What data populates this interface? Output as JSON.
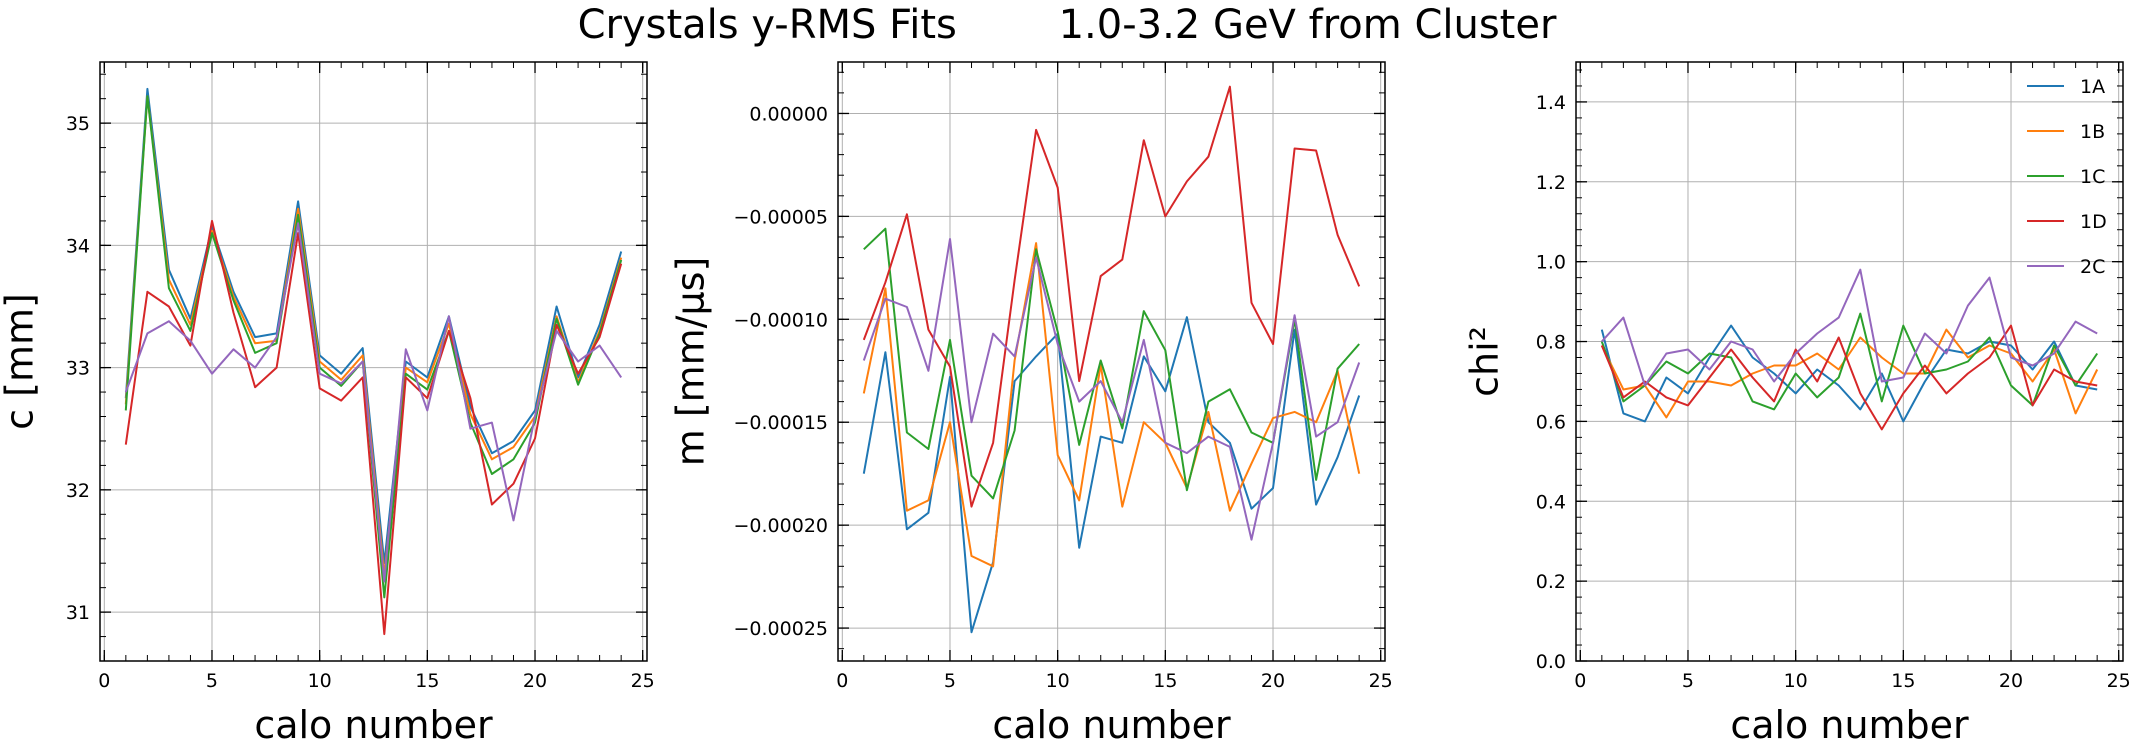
{
  "figure": {
    "title": "Crystals y-RMS Fits        1.0-3.2 GeV from Cluster"
  },
  "colors": {
    "1A": "#1f77b4",
    "1B": "#ff7f0e",
    "1C": "#2ca02c",
    "1D": "#d62728",
    "2C": "#9467bd",
    "grid": "#b0b0b0"
  },
  "chart_data": [
    {
      "type": "line",
      "title": "",
      "xlabel": "calo number",
      "ylabel": "c   [mm]",
      "xlim": [
        -0.2,
        25.2
      ],
      "ylim": [
        30.6,
        35.5
      ],
      "xticks": [
        0,
        5,
        10,
        15,
        20,
        25
      ],
      "xtick_labels": [
        "0",
        "5",
        "10",
        "15",
        "20",
        "25"
      ],
      "yticks": [
        31,
        32,
        33,
        34,
        35
      ],
      "ytick_labels": [
        "31",
        "32",
        "33",
        "34",
        "35"
      ],
      "grid": true,
      "legend": false,
      "x": [
        1,
        2,
        3,
        4,
        5,
        6,
        7,
        8,
        9,
        10,
        11,
        12,
        13,
        14,
        15,
        16,
        17,
        18,
        19,
        20,
        21,
        22,
        23,
        24
      ],
      "series": [
        {
          "name": "1A",
          "values": [
            32.75,
            35.28,
            33.8,
            33.4,
            34.15,
            33.62,
            33.25,
            33.28,
            34.36,
            33.1,
            32.95,
            33.16,
            31.4,
            33.05,
            32.92,
            33.42,
            32.68,
            32.3,
            32.4,
            32.65,
            33.5,
            32.92,
            33.35,
            33.95
          ]
        },
        {
          "name": "1B",
          "values": [
            32.7,
            35.22,
            33.72,
            33.35,
            34.12,
            33.58,
            33.2,
            33.22,
            34.3,
            33.05,
            32.9,
            33.1,
            31.3,
            33.0,
            32.88,
            33.36,
            32.62,
            32.25,
            32.35,
            32.6,
            33.42,
            32.88,
            33.3,
            33.9
          ]
        },
        {
          "name": "1C",
          "values": [
            32.65,
            35.22,
            33.65,
            33.3,
            34.1,
            33.55,
            33.12,
            33.2,
            34.25,
            33.0,
            32.85,
            33.05,
            31.12,
            32.95,
            32.82,
            33.3,
            32.55,
            32.13,
            32.25,
            32.55,
            33.4,
            32.86,
            33.28,
            33.88
          ]
        },
        {
          "name": "1D",
          "values": [
            32.37,
            33.62,
            33.5,
            33.18,
            34.2,
            33.45,
            32.84,
            33.0,
            34.1,
            32.83,
            32.73,
            32.92,
            30.82,
            32.92,
            32.75,
            33.3,
            32.75,
            31.88,
            32.05,
            32.42,
            33.35,
            32.95,
            33.25,
            33.85
          ]
        },
        {
          "name": "2C",
          "values": [
            32.8,
            33.28,
            33.38,
            33.22,
            32.95,
            33.15,
            33.0,
            33.25,
            34.18,
            32.95,
            32.87,
            33.05,
            31.25,
            33.15,
            32.65,
            33.42,
            32.5,
            32.55,
            31.75,
            32.6,
            33.3,
            33.05,
            33.18,
            32.92
          ]
        }
      ]
    },
    {
      "type": "line",
      "title": "",
      "xlabel": "calo number",
      "ylabel": "m   [mm/µs]",
      "xlim": [
        -0.2,
        25.2
      ],
      "ylim": [
        -0.000266,
        2.5e-05
      ],
      "xticks": [
        0,
        5,
        10,
        15,
        20,
        25
      ],
      "xtick_labels": [
        "0",
        "5",
        "10",
        "15",
        "20",
        "25"
      ],
      "yticks": [
        -0.00025,
        -0.0002,
        -0.00015,
        -0.0001,
        -5e-05,
        0
      ],
      "ytick_labels": [
        "−0.00025",
        "−0.00020",
        "−0.00015",
        "−0.00010",
        "−0.00005",
        "0.00000"
      ],
      "grid": true,
      "legend": false,
      "x": [
        1,
        2,
        3,
        4,
        5,
        6,
        7,
        8,
        9,
        10,
        11,
        12,
        13,
        14,
        15,
        16,
        17,
        18,
        19,
        20,
        21,
        22,
        23,
        24
      ],
      "series": [
        {
          "name": "1A",
          "values": [
            -0.000175,
            -0.000116,
            -0.000202,
            -0.000194,
            -0.000128,
            -0.000252,
            -0.000218,
            -0.00013,
            -0.000118,
            -0.000107,
            -0.000211,
            -0.000157,
            -0.00016,
            -0.000118,
            -0.000135,
            -9.9e-05,
            -0.00015,
            -0.00016,
            -0.000192,
            -0.000182,
            -0.000105,
            -0.00019,
            -0.000167,
            -0.000137
          ]
        },
        {
          "name": "1B",
          "values": [
            -0.000136,
            -8.5e-05,
            -0.000193,
            -0.000188,
            -0.00015,
            -0.000215,
            -0.00022,
            -0.00012,
            -6.3e-05,
            -0.000166,
            -0.000188,
            -0.000122,
            -0.000191,
            -0.00015,
            -0.00016,
            -0.000182,
            -0.000145,
            -0.000193,
            -0.00017,
            -0.000148,
            -0.000145,
            -0.00015,
            -0.000125,
            -0.000175
          ]
        },
        {
          "name": "1C",
          "values": [
            -6.6e-05,
            -5.6e-05,
            -0.000155,
            -0.000163,
            -0.00011,
            -0.000176,
            -0.000187,
            -0.000154,
            -6.6e-05,
            -0.000106,
            -0.000161,
            -0.00012,
            -0.000153,
            -9.6e-05,
            -0.000115,
            -0.000183,
            -0.00014,
            -0.000134,
            -0.000155,
            -0.00016,
            -0.0001,
            -0.000178,
            -0.000124,
            -0.000112
          ]
        },
        {
          "name": "1D",
          "values": [
            -0.00011,
            -8.2e-05,
            -4.9e-05,
            -0.000105,
            -0.000123,
            -0.000191,
            -0.00016,
            -8.1e-05,
            -8e-06,
            -3.6e-05,
            -0.00013,
            -7.9e-05,
            -7.1e-05,
            -1.3e-05,
            -5e-05,
            -3.3e-05,
            -2.1e-05,
            1.3e-05,
            -9.2e-05,
            -0.000112,
            -1.7e-05,
            -1.8e-05,
            -5.9e-05,
            -8.4e-05
          ]
        },
        {
          "name": "2C",
          "values": [
            -0.00012,
            -9e-05,
            -9.4e-05,
            -0.000125,
            -6.1e-05,
            -0.00015,
            -0.000107,
            -0.000118,
            -7e-05,
            -0.000112,
            -0.00014,
            -0.00013,
            -0.00015,
            -0.00011,
            -0.00016,
            -0.000165,
            -0.000157,
            -0.000162,
            -0.000207,
            -0.00016,
            -9.8e-05,
            -0.000157,
            -0.00015,
            -0.000121
          ]
        }
      ]
    },
    {
      "type": "line",
      "title": "",
      "xlabel": "calo number",
      "ylabel": "chi²",
      "xlim": [
        -0.2,
        25.2
      ],
      "ylim": [
        0,
        1.5
      ],
      "xticks": [
        0,
        5,
        10,
        15,
        20,
        25
      ],
      "xtick_labels": [
        "0",
        "5",
        "10",
        "15",
        "20",
        "25"
      ],
      "yticks": [
        0,
        0.2,
        0.4,
        0.6,
        0.8,
        1.0,
        1.2,
        1.4
      ],
      "ytick_labels": [
        "0.0",
        "0.2",
        "0.4",
        "0.6",
        "0.8",
        "1.0",
        "1.2",
        "1.4"
      ],
      "grid": true,
      "legend": true,
      "legend_position": "top-right",
      "x": [
        1,
        2,
        3,
        4,
        5,
        6,
        7,
        8,
        9,
        10,
        11,
        12,
        13,
        14,
        15,
        16,
        17,
        18,
        19,
        20,
        21,
        22,
        23,
        24
      ],
      "series": [
        {
          "name": "1A",
          "values": [
            0.83,
            0.62,
            0.6,
            0.71,
            0.67,
            0.76,
            0.84,
            0.76,
            0.72,
            0.67,
            0.73,
            0.69,
            0.63,
            0.72,
            0.6,
            0.7,
            0.78,
            0.77,
            0.8,
            0.79,
            0.73,
            0.8,
            0.69,
            0.68
          ]
        },
        {
          "name": "1B",
          "values": [
            0.79,
            0.68,
            0.69,
            0.61,
            0.7,
            0.7,
            0.69,
            0.72,
            0.74,
            0.74,
            0.77,
            0.73,
            0.81,
            0.76,
            0.72,
            0.72,
            0.83,
            0.76,
            0.79,
            0.77,
            0.7,
            0.78,
            0.62,
            0.73
          ]
        },
        {
          "name": "1C",
          "values": [
            0.8,
            0.65,
            0.69,
            0.75,
            0.72,
            0.77,
            0.76,
            0.65,
            0.63,
            0.72,
            0.66,
            0.71,
            0.87,
            0.65,
            0.84,
            0.72,
            0.73,
            0.75,
            0.81,
            0.69,
            0.64,
            0.79,
            0.69,
            0.77
          ]
        },
        {
          "name": "1D",
          "values": [
            0.79,
            0.66,
            0.7,
            0.66,
            0.64,
            0.71,
            0.78,
            0.71,
            0.65,
            0.78,
            0.7,
            0.81,
            0.67,
            0.58,
            0.67,
            0.74,
            0.67,
            0.72,
            0.76,
            0.84,
            0.64,
            0.73,
            0.7,
            0.69
          ]
        },
        {
          "name": "2C",
          "values": [
            0.8,
            0.86,
            0.69,
            0.77,
            0.78,
            0.73,
            0.8,
            0.78,
            0.7,
            0.77,
            0.82,
            0.86,
            0.98,
            0.7,
            0.71,
            0.82,
            0.77,
            0.89,
            0.96,
            0.76,
            0.74,
            0.77,
            0.85,
            0.82
          ]
        }
      ]
    }
  ]
}
